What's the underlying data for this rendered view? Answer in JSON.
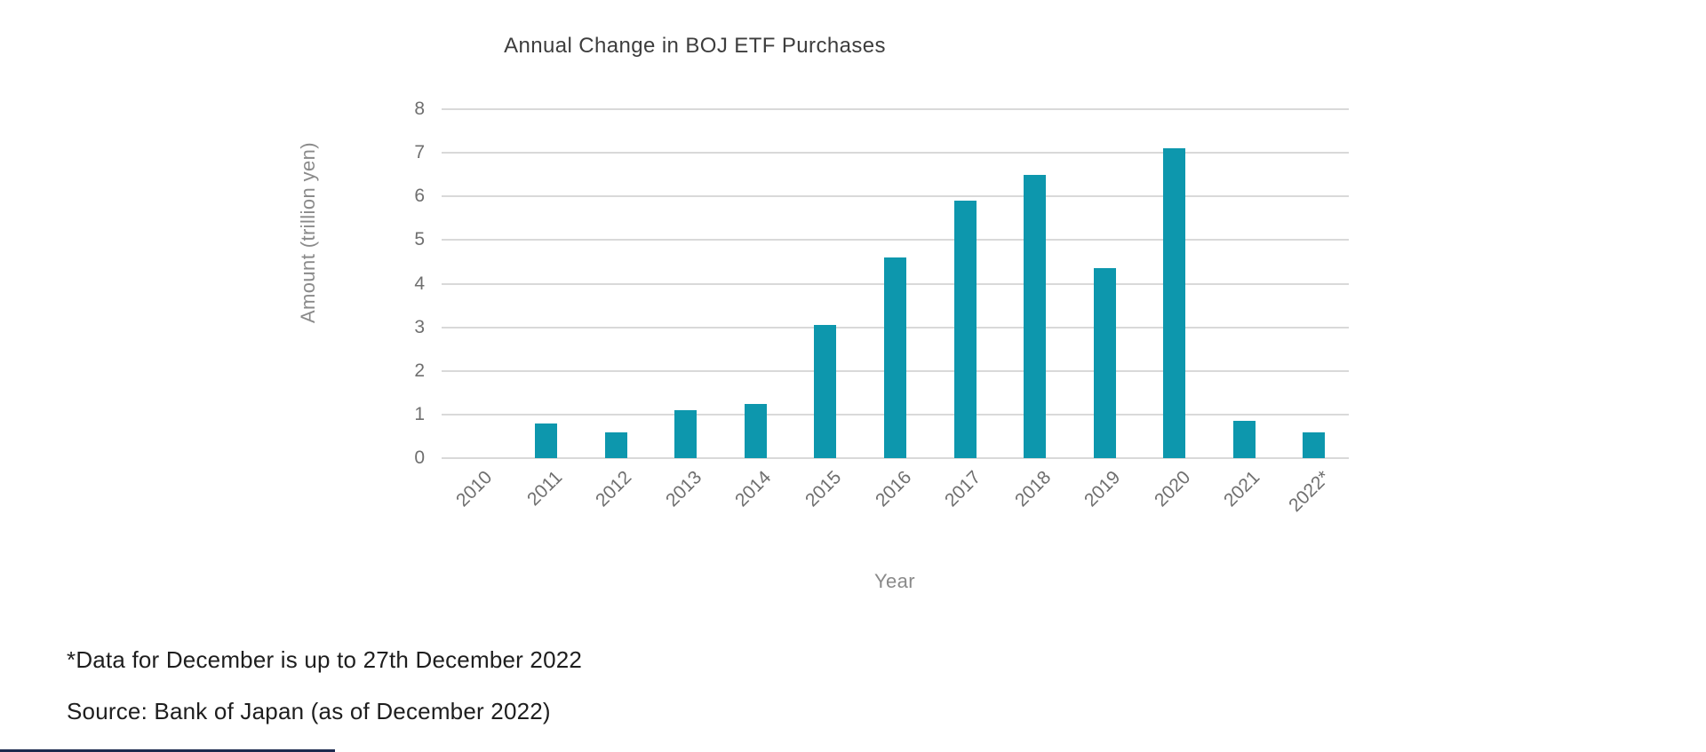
{
  "chart_data": {
    "type": "bar",
    "title": "Annual Change in BOJ ETF Purchases",
    "xlabel": "Year",
    "ylabel": "Amount (trillion yen)",
    "categories": [
      "2010",
      "2011",
      "2012",
      "2013",
      "2014",
      "2015",
      "2016",
      "2017",
      "2018",
      "2019",
      "2020",
      "2021",
      "2022*"
    ],
    "values": [
      0,
      0.8,
      0.6,
      1.1,
      1.25,
      3.05,
      4.6,
      5.9,
      6.5,
      4.35,
      7.1,
      0.85,
      0.6
    ],
    "ylim": [
      0,
      8
    ],
    "yticks": [
      0,
      1,
      2,
      3,
      4,
      5,
      6,
      7,
      8
    ],
    "grid": true,
    "legend": false
  },
  "footnotes": {
    "line1": "*Data for December is up to 27th December 2022",
    "line2": "Source: Bank of Japan (as of December 2022)"
  },
  "colors": {
    "bar": "#0d97ad",
    "gridline": "#d9d9d9",
    "tick_text": "#6f6f6f",
    "axis_title_text": "#8a8a8a",
    "title_text": "#3d3d3d",
    "footnote_text": "#1e1e1e",
    "bottom_bar": "#1d2b4f"
  }
}
